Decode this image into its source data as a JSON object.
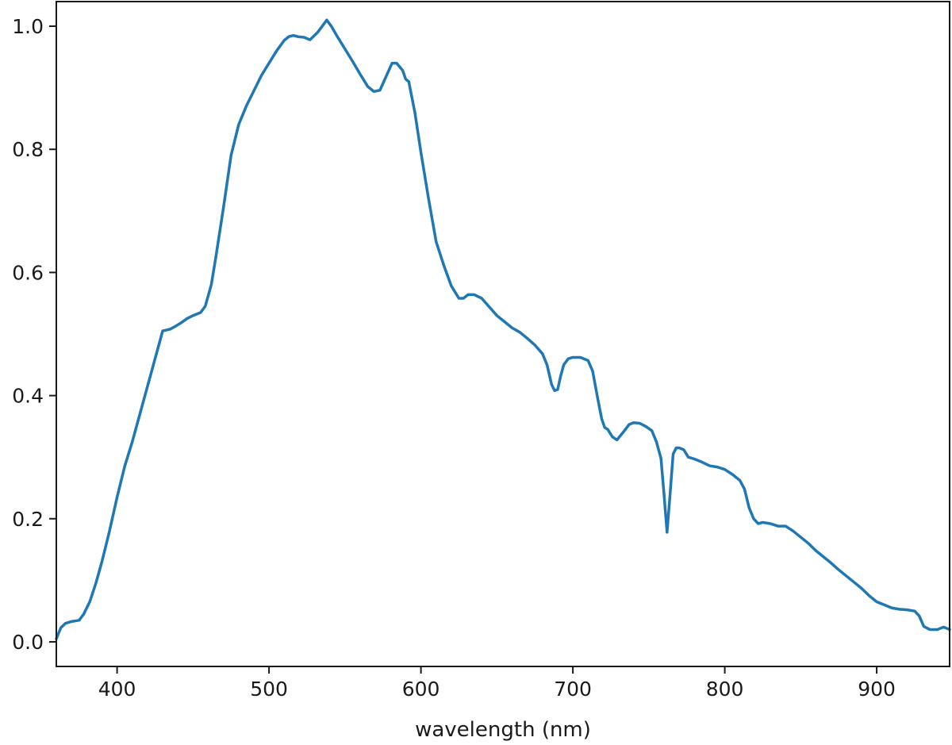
{
  "chart_data": {
    "type": "line",
    "title": "",
    "xlabel": "wavelength (nm)",
    "ylabel": "",
    "xlim": [
      360,
      948
    ],
    "ylim": [
      -0.04,
      1.04
    ],
    "grid": false,
    "legend": "none",
    "x_ticks": [
      400,
      500,
      600,
      700,
      800,
      900
    ],
    "x_tick_labels": [
      "400",
      "500",
      "600",
      "700",
      "800",
      "900"
    ],
    "y_ticks": [
      0.0,
      0.2,
      0.4,
      0.6,
      0.8,
      1.0
    ],
    "y_tick_labels": [
      "0.0",
      "0.2",
      "0.4",
      "0.6",
      "0.8",
      "1.0"
    ],
    "series": [
      {
        "color": "#1f77b4",
        "x": [
          360,
          363,
          366,
          370,
          375,
          378,
          382,
          386,
          390,
          395,
          400,
          405,
          410,
          415,
          420,
          425,
          430,
          435,
          438,
          442,
          446,
          450,
          455,
          458,
          462,
          465,
          470,
          475,
          480,
          485,
          490,
          495,
          500,
          505,
          510,
          513,
          516,
          519,
          523,
          527,
          532,
          535,
          538,
          541,
          545,
          550,
          555,
          560,
          565,
          569,
          573,
          577,
          581,
          584,
          588,
          590,
          592,
          596,
          600,
          605,
          610,
          615,
          620,
          625,
          628,
          631,
          635,
          640,
          645,
          650,
          655,
          660,
          665,
          670,
          675,
          680,
          683,
          686,
          688,
          690,
          692,
          694,
          697,
          700,
          705,
          710,
          713,
          716,
          719,
          721,
          723,
          726,
          729,
          733,
          737,
          740,
          744,
          748,
          752,
          755,
          758,
          760,
          762,
          764,
          766,
          768,
          770,
          773,
          776,
          780,
          785,
          790,
          795,
          800,
          805,
          810,
          813,
          816,
          819,
          822,
          825,
          830,
          835,
          840,
          845,
          850,
          855,
          860,
          865,
          870,
          875,
          880,
          885,
          890,
          895,
          900,
          905,
          910,
          915,
          920,
          925,
          928,
          931,
          935,
          940,
          944,
          948
        ],
        "y": [
          0.005,
          0.023,
          0.03,
          0.033,
          0.035,
          0.045,
          0.065,
          0.095,
          0.13,
          0.18,
          0.235,
          0.285,
          0.325,
          0.37,
          0.415,
          0.46,
          0.505,
          0.508,
          0.512,
          0.518,
          0.525,
          0.53,
          0.535,
          0.545,
          0.58,
          0.625,
          0.705,
          0.79,
          0.84,
          0.87,
          0.895,
          0.92,
          0.94,
          0.96,
          0.977,
          0.983,
          0.985,
          0.983,
          0.982,
          0.978,
          0.99,
          1.0,
          1.01,
          1.0,
          0.983,
          0.963,
          0.943,
          0.922,
          0.902,
          0.894,
          0.896,
          0.918,
          0.94,
          0.94,
          0.928,
          0.914,
          0.91,
          0.86,
          0.795,
          0.72,
          0.65,
          0.612,
          0.578,
          0.558,
          0.558,
          0.564,
          0.564,
          0.558,
          0.544,
          0.53,
          0.52,
          0.51,
          0.503,
          0.493,
          0.482,
          0.468,
          0.45,
          0.418,
          0.408,
          0.41,
          0.432,
          0.45,
          0.46,
          0.462,
          0.462,
          0.457,
          0.44,
          0.4,
          0.362,
          0.348,
          0.345,
          0.333,
          0.328,
          0.34,
          0.353,
          0.356,
          0.355,
          0.35,
          0.343,
          0.325,
          0.298,
          0.24,
          0.178,
          0.24,
          0.305,
          0.315,
          0.315,
          0.312,
          0.3,
          0.297,
          0.292,
          0.286,
          0.284,
          0.28,
          0.272,
          0.262,
          0.248,
          0.218,
          0.2,
          0.192,
          0.194,
          0.192,
          0.188,
          0.188,
          0.18,
          0.17,
          0.16,
          0.148,
          0.138,
          0.128,
          0.117,
          0.107,
          0.097,
          0.087,
          0.075,
          0.065,
          0.06,
          0.055,
          0.053,
          0.052,
          0.05,
          0.042,
          0.025,
          0.02,
          0.02,
          0.024,
          0.02
        ]
      }
    ]
  }
}
